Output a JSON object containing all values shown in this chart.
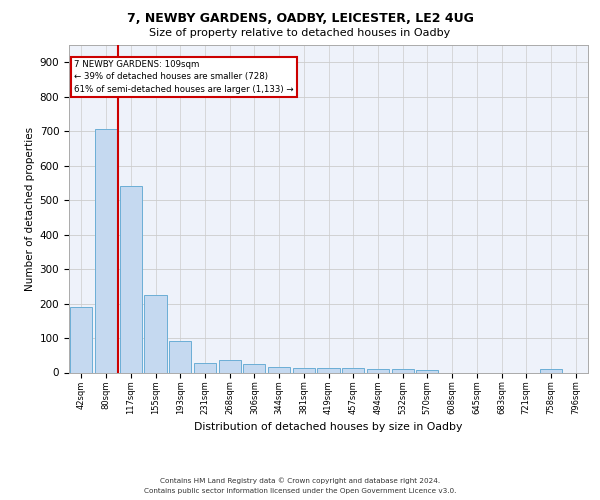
{
  "title1": "7, NEWBY GARDENS, OADBY, LEICESTER, LE2 4UG",
  "title2": "Size of property relative to detached houses in Oadby",
  "xlabel": "Distribution of detached houses by size in Oadby",
  "ylabel": "Number of detached properties",
  "categories": [
    "42sqm",
    "80sqm",
    "117sqm",
    "155sqm",
    "193sqm",
    "231sqm",
    "268sqm",
    "306sqm",
    "344sqm",
    "381sqm",
    "419sqm",
    "457sqm",
    "494sqm",
    "532sqm",
    "570sqm",
    "608sqm",
    "645sqm",
    "683sqm",
    "721sqm",
    "758sqm",
    "796sqm"
  ],
  "values": [
    190,
    705,
    540,
    225,
    92,
    28,
    37,
    25,
    15,
    13,
    13,
    13,
    10,
    9,
    8,
    0,
    0,
    0,
    0,
    10,
    0
  ],
  "bar_color": "#c5d9f0",
  "bar_edge_color": "#6baed6",
  "vline_color": "#cc0000",
  "grid_color": "#cccccc",
  "ylim": [
    0,
    950
  ],
  "yticks": [
    0,
    100,
    200,
    300,
    400,
    500,
    600,
    700,
    800,
    900
  ],
  "annotation_line1": "7 NEWBY GARDENS: 109sqm",
  "annotation_line2": "← 39% of detached houses are smaller (728)",
  "annotation_line3": "61% of semi-detached houses are larger (1,133) →",
  "annotation_box_color": "#ffffff",
  "annotation_box_edge": "#cc0000",
  "footer1": "Contains HM Land Registry data © Crown copyright and database right 2024.",
  "footer2": "Contains public sector information licensed under the Open Government Licence v3.0.",
  "bg_color": "#eef2fa"
}
